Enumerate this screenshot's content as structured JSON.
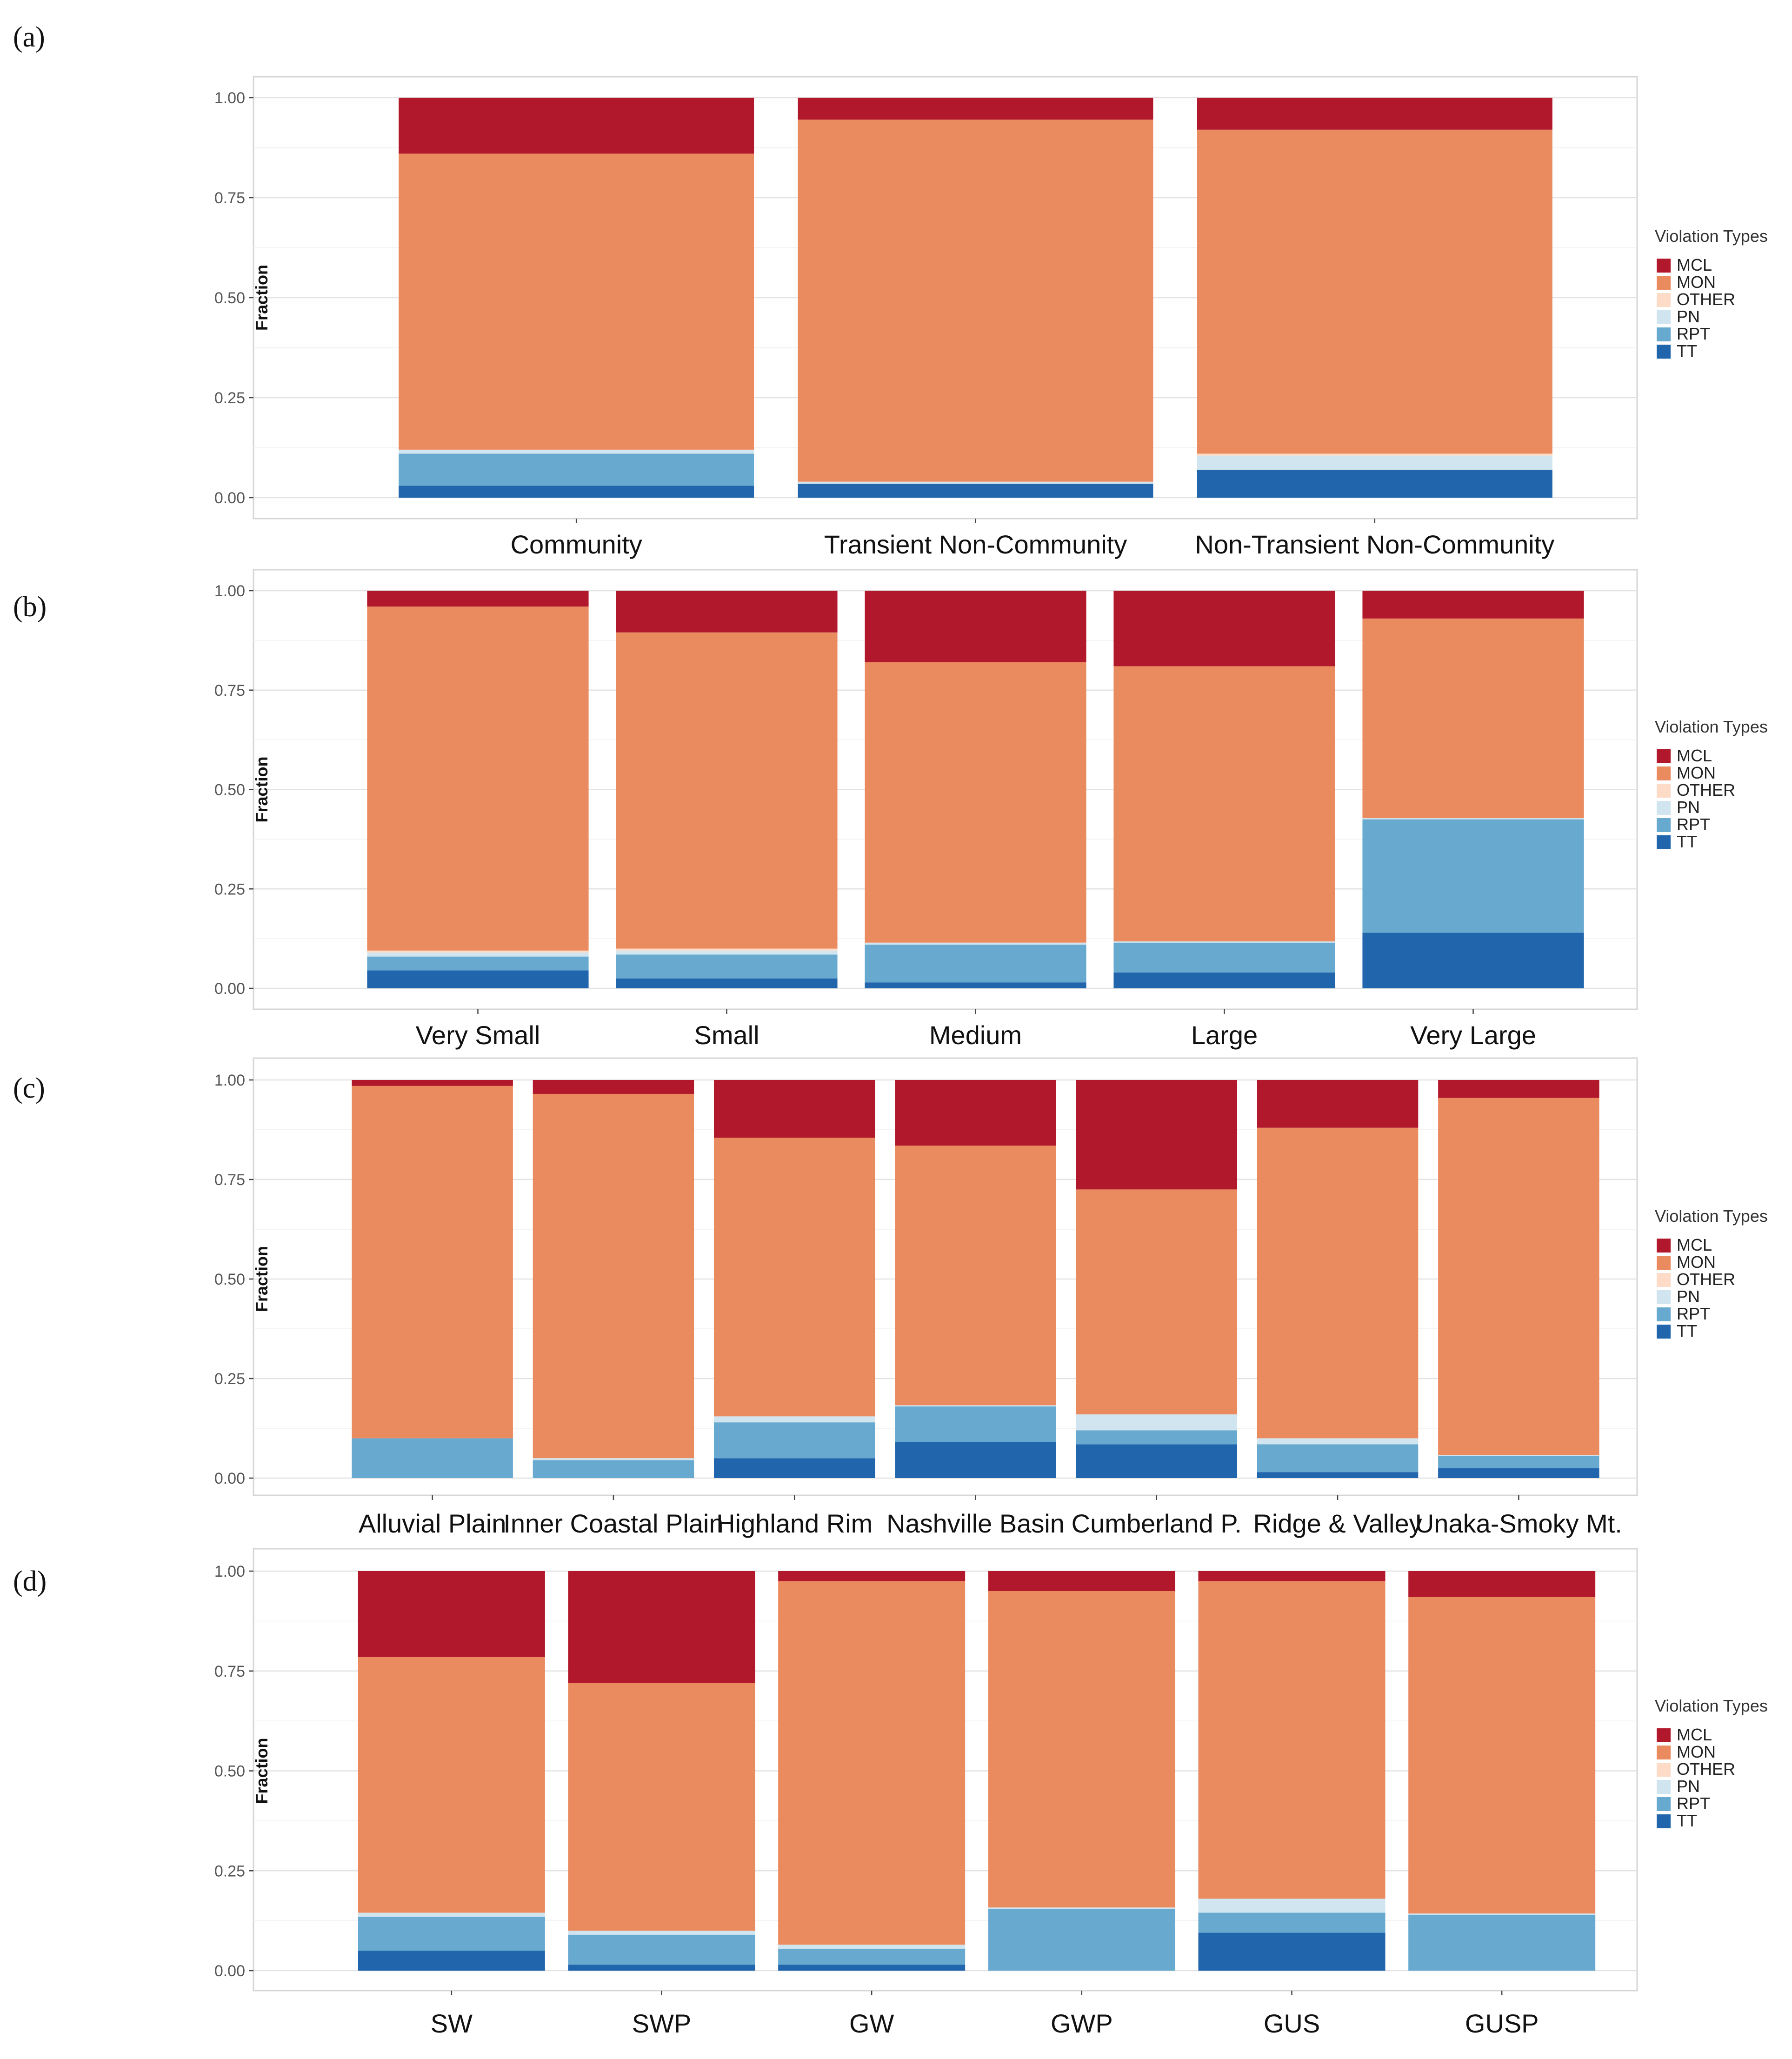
{
  "figure": {
    "type": "stacked-bar-100%",
    "panels": 4
  },
  "colors": {
    "MCL": "#b2182b",
    "MON": "#ea8a5f",
    "OTHER": "#fddbc7",
    "PN": "#d1e5f0",
    "RPT": "#67a9cf",
    "TT": "#2166ac"
  },
  "chart_data": [
    {
      "type": "bar",
      "panel_letter": "(a)",
      "ylabel": "Fraction",
      "ylim": [
        0,
        1
      ],
      "yticks": [
        "0.00",
        "0.25",
        "0.50",
        "0.75",
        "1.00"
      ],
      "legend_title": "Violation Types",
      "legend": [
        "MCL",
        "MON",
        "OTHER",
        "PN",
        "RPT",
        "TT"
      ],
      "categories": [
        "Community",
        "Transient Non-Community",
        "Non-Transient Non-Community"
      ],
      "series": [
        {
          "name": "TT",
          "values": [
            0.03,
            0.035,
            0.07
          ]
        },
        {
          "name": "RPT",
          "values": [
            0.08,
            0.0,
            0.0
          ]
        },
        {
          "name": "PN",
          "values": [
            0.01,
            0.005,
            0.035
          ]
        },
        {
          "name": "OTHER",
          "values": [
            0.0,
            0.0,
            0.005
          ]
        },
        {
          "name": "MON",
          "values": [
            0.74,
            0.905,
            0.81
          ]
        },
        {
          "name": "MCL",
          "values": [
            0.14,
            0.055,
            0.08
          ]
        }
      ]
    },
    {
      "type": "bar",
      "panel_letter": "(b)",
      "ylabel": "Fraction",
      "ylim": [
        0,
        1
      ],
      "yticks": [
        "0.00",
        "0.25",
        "0.50",
        "0.75",
        "1.00"
      ],
      "legend_title": "Violation Types",
      "legend": [
        "MCL",
        "MON",
        "OTHER",
        "PN",
        "RPT",
        "TT"
      ],
      "categories": [
        "Very Small",
        "Small",
        "Medium",
        "Large",
        "Very Large"
      ],
      "series": [
        {
          "name": "TT",
          "values": [
            0.045,
            0.025,
            0.015,
            0.04,
            0.14
          ]
        },
        {
          "name": "RPT",
          "values": [
            0.035,
            0.06,
            0.095,
            0.075,
            0.285
          ]
        },
        {
          "name": "PN",
          "values": [
            0.01,
            0.01,
            0.005,
            0.003,
            0.003
          ]
        },
        {
          "name": "OTHER",
          "values": [
            0.005,
            0.005,
            0.0,
            0.0,
            0.0
          ]
        },
        {
          "name": "MON",
          "values": [
            0.865,
            0.795,
            0.705,
            0.692,
            0.502
          ]
        },
        {
          "name": "MCL",
          "values": [
            0.04,
            0.105,
            0.18,
            0.19,
            0.07
          ]
        }
      ]
    },
    {
      "type": "bar",
      "panel_letter": "(c)",
      "ylabel": "Fraction",
      "ylim": [
        0,
        1
      ],
      "yticks": [
        "0.00",
        "0.25",
        "0.50",
        "0.75",
        "1.00"
      ],
      "legend_title": "Violation Types",
      "legend": [
        "MCL",
        "MON",
        "OTHER",
        "PN",
        "RPT",
        "TT"
      ],
      "categories": [
        "Alluvial Plain",
        "Inner Coastal Plain",
        "Highland Rim",
        "Nashville Basin",
        "Cumberland P.",
        "Ridge & Valley",
        "Unaka-Smoky Mt."
      ],
      "series": [
        {
          "name": "TT",
          "values": [
            0.0,
            0.0,
            0.05,
            0.09,
            0.085,
            0.015,
            0.025
          ]
        },
        {
          "name": "RPT",
          "values": [
            0.1,
            0.045,
            0.09,
            0.09,
            0.035,
            0.07,
            0.03
          ]
        },
        {
          "name": "PN",
          "values": [
            0.0,
            0.005,
            0.015,
            0.003,
            0.04,
            0.015,
            0.003
          ]
        },
        {
          "name": "OTHER",
          "values": [
            0.0,
            0.0,
            0.0,
            0.0,
            0.0,
            0.0,
            0.0
          ]
        },
        {
          "name": "MON",
          "values": [
            0.885,
            0.915,
            0.7,
            0.652,
            0.565,
            0.78,
            0.897
          ]
        },
        {
          "name": "MCL",
          "values": [
            0.015,
            0.035,
            0.145,
            0.165,
            0.275,
            0.12,
            0.045
          ]
        }
      ]
    },
    {
      "type": "bar",
      "panel_letter": "(d)",
      "ylabel": "Fraction",
      "ylim": [
        0,
        1
      ],
      "yticks": [
        "0.00",
        "0.25",
        "0.50",
        "0.75",
        "1.00"
      ],
      "legend_title": "Violation Types",
      "legend": [
        "MCL",
        "MON",
        "OTHER",
        "PN",
        "RPT",
        "TT"
      ],
      "categories": [
        "SW",
        "SWP",
        "GW",
        "GWP",
        "GUS",
        "GUSP"
      ],
      "series": [
        {
          "name": "TT",
          "values": [
            0.05,
            0.015,
            0.015,
            0.0,
            0.095,
            0.0
          ]
        },
        {
          "name": "RPT",
          "values": [
            0.085,
            0.075,
            0.04,
            0.155,
            0.05,
            0.14
          ]
        },
        {
          "name": "PN",
          "values": [
            0.01,
            0.01,
            0.01,
            0.003,
            0.035,
            0.003
          ]
        },
        {
          "name": "OTHER",
          "values": [
            0.0,
            0.0,
            0.0,
            0.0,
            0.0,
            0.0
          ]
        },
        {
          "name": "MON",
          "values": [
            0.64,
            0.62,
            0.91,
            0.792,
            0.795,
            0.792
          ]
        },
        {
          "name": "MCL",
          "values": [
            0.215,
            0.28,
            0.025,
            0.05,
            0.025,
            0.065
          ]
        }
      ]
    }
  ]
}
